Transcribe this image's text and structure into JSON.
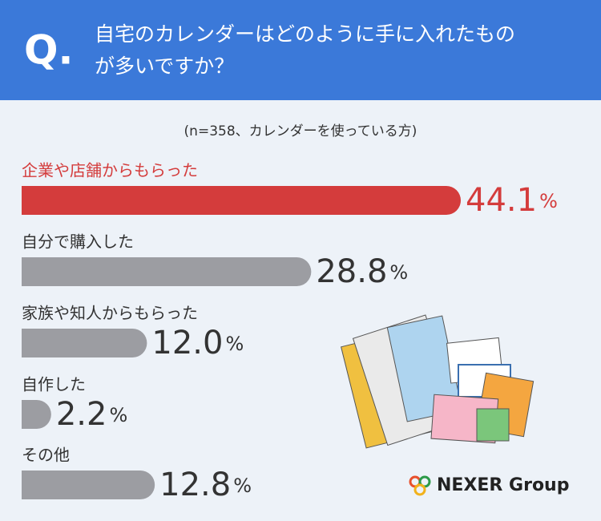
{
  "chart_data": {
    "type": "bar",
    "question_mark": "Q.",
    "title": [
      "自宅のカレンダーはどのように手に入れたもの",
      "が多いですか？"
    ],
    "subtitle": "(n=358、カレンダーを使っている方)",
    "categories": [
      "企業や店舗からもらった",
      "自分で購入した",
      "家族や知人からもらった",
      "自作した",
      "その他"
    ],
    "values": [
      44.1,
      28.8,
      12.0,
      2.2,
      12.8
    ],
    "value_labels": [
      "44.1",
      "28.8",
      "12.0",
      "2.2",
      "12.8"
    ],
    "unit": "%",
    "colors": [
      "#d43c3c",
      "#9c9da2",
      "#9c9da2",
      "#9c9da2",
      "#9c9da2"
    ],
    "logo": "NEXER Group"
  }
}
